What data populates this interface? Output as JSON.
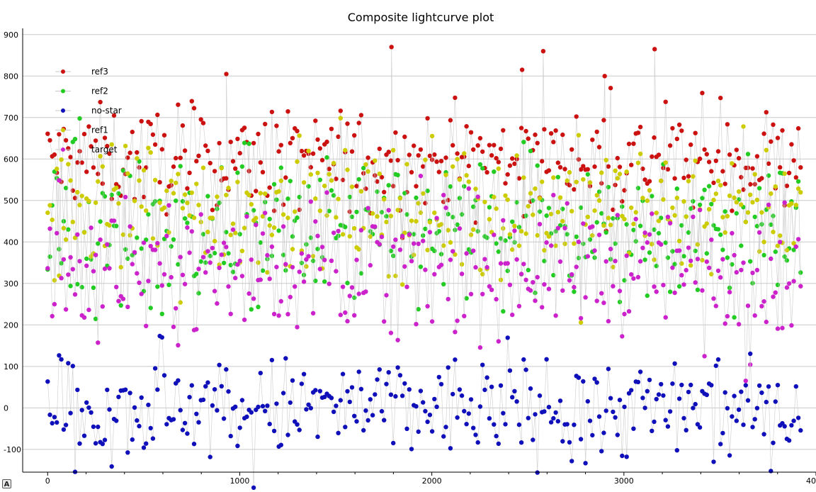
{
  "corner_badge": "A",
  "chart_data": {
    "type": "scatter",
    "title": "Composite lightcurve plot",
    "xlabel": "",
    "ylabel": "",
    "xlim": [
      -130,
      4000
    ],
    "ylim": [
      -155,
      915
    ],
    "xticks": [
      0,
      1000,
      2000,
      3000,
      4000
    ],
    "xtick_labels": [
      "0",
      "1000",
      "2000",
      "3000",
      "4000"
    ],
    "yticks": [
      -100,
      0,
      100,
      200,
      300,
      400,
      500,
      600,
      700,
      800,
      900
    ],
    "ytick_labels": [
      "-100",
      "0",
      "100",
      "200",
      "300",
      "400",
      "500",
      "600",
      "700",
      "800",
      "900"
    ],
    "grid": "horizontal",
    "legend": "top-left",
    "connecting_line_color": "#c8c8c8",
    "series": [
      {
        "name": "ref3",
        "color": "#cc1111",
        "x_range": [
          0,
          3920
        ],
        "typical_range": [
          480,
          720
        ],
        "mean": 600,
        "peaks": [
          {
            "x": 1790,
            "y": 870
          },
          {
            "x": 2580,
            "y": 860
          },
          {
            "x": 3160,
            "y": 865
          },
          {
            "x": 930,
            "y": 805
          },
          {
            "x": 2470,
            "y": 815
          },
          {
            "x": 2900,
            "y": 800
          }
        ]
      },
      {
        "name": "ref2",
        "color": "#22cc22",
        "x_range": [
          0,
          3920
        ],
        "typical_range": [
          200,
          560
        ],
        "mean": 420
      },
      {
        "name": "no-star",
        "color": "#1010bb",
        "x_range": [
          0,
          3920
        ],
        "typical_range": [
          -110,
          130
        ],
        "mean": 0
      },
      {
        "name": "ref1",
        "color": "#cccc00",
        "x_range": [
          0,
          3920
        ],
        "typical_range": [
          330,
          640
        ],
        "mean": 480
      },
      {
        "name": "target",
        "color": "#cc22cc",
        "x_range": [
          0,
          3920
        ],
        "typical_range": [
          190,
          490
        ],
        "mean": 340
      }
    ]
  }
}
